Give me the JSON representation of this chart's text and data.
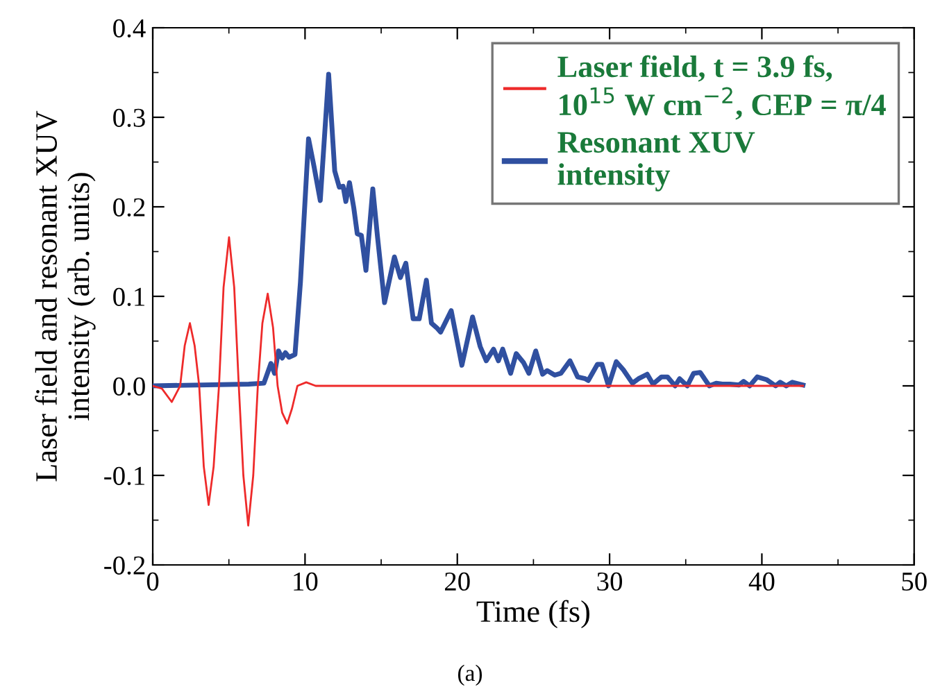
{
  "chart_data": {
    "type": "line",
    "xlabel": "Time (fs)",
    "ylabel": "Laser field and resonant XUV\nintensity (arb. units)",
    "xlim": [
      0,
      50
    ],
    "xticks": [
      0,
      10,
      20,
      30,
      40,
      50
    ],
    "ylim": [
      -0.2,
      0.4
    ],
    "yticks": [
      -0.2,
      -0.1,
      {
        "value": 0,
        "label": "0.0"
      },
      0.1,
      0.2,
      0.3,
      0.4
    ],
    "grid": false,
    "legend": "top right",
    "marker": "none",
    "line_style": "solid",
    "annotations": [
      "(a)"
    ],
    "series": [
      {
        "name": "Laser field, t = 3.9 fs,\n10$^{15}$ W cm$^{−2}$, CEP = π/4",
        "color": "#ee2a2a",
        "x": [
          0,
          0.6,
          1.25,
          1.8,
          2.1,
          2.44,
          2.75,
          3.05,
          3.35,
          3.67,
          4.0,
          4.35,
          4.65,
          5.01,
          5.35,
          5.65,
          5.95,
          6.27,
          6.6,
          6.9,
          7.2,
          7.55,
          7.9,
          8.2,
          8.5,
          8.83,
          9.15,
          9.5,
          10.08,
          10.7,
          42.7
        ],
        "values": [
          0,
          -0.003,
          -0.018,
          0,
          0.045,
          0.07,
          0.045,
          0,
          -0.09,
          -0.133,
          -0.09,
          0,
          0.11,
          0.166,
          0.11,
          0,
          -0.1,
          -0.156,
          -0.1,
          0,
          0.07,
          0.103,
          0.065,
          0,
          -0.03,
          -0.042,
          -0.025,
          0,
          0.004,
          0,
          0
        ]
      },
      {
        "name": "Resonant XUV\nintensity",
        "color": "#3050a0",
        "x": [
          0,
          6.3,
          7.3,
          7.76,
          8.0,
          8.26,
          8.5,
          8.71,
          8.95,
          9.34,
          9.7,
          10.23,
          10.59,
          11.0,
          11.55,
          11.95,
          12.25,
          12.5,
          12.68,
          12.92,
          13.2,
          13.43,
          13.7,
          14.0,
          14.45,
          14.75,
          15.22,
          15.87,
          16.26,
          16.62,
          17.1,
          17.5,
          17.97,
          18.3,
          18.7,
          18.9,
          19.6,
          20.3,
          21.0,
          21.5,
          21.9,
          22.38,
          22.7,
          22.98,
          23.5,
          23.87,
          24.35,
          24.7,
          25.15,
          25.6,
          25.9,
          26.4,
          26.8,
          27.4,
          27.9,
          28.4,
          28.6,
          29.2,
          29.5,
          29.93,
          30.44,
          30.9,
          31.5,
          31.9,
          32.47,
          32.85,
          33.4,
          33.8,
          34.3,
          34.6,
          35.1,
          35.52,
          35.95,
          36.55,
          37.0,
          37.4,
          37.9,
          38.5,
          38.8,
          39.2,
          39.7,
          40.3,
          40.9,
          41.2,
          41.6,
          42.0,
          42.7
        ],
        "values": [
          0,
          0.002,
          0.003,
          0.025,
          0.014,
          0.039,
          0.031,
          0.037,
          0.032,
          0.035,
          0.116,
          0.276,
          0.245,
          0.207,
          0.348,
          0.24,
          0.222,
          0.223,
          0.206,
          0.227,
          0.199,
          0.17,
          0.168,
          0.129,
          0.22,
          0.168,
          0.093,
          0.144,
          0.121,
          0.137,
          0.075,
          0.075,
          0.118,
          0.07,
          0.064,
          0.06,
          0.084,
          0.023,
          0.077,
          0.044,
          0.028,
          0.041,
          0.028,
          0.041,
          0.014,
          0.036,
          0.026,
          0.014,
          0.039,
          0.013,
          0.017,
          0.012,
          0.014,
          0.028,
          0.01,
          0.008,
          0.006,
          0.024,
          0.024,
          0.0,
          0.027,
          0.018,
          0.003,
          0.008,
          0.013,
          0.002,
          0.01,
          0.01,
          0.0,
          0.008,
          0.0,
          0.014,
          0.015,
          0.0,
          0.003,
          0.002,
          0.002,
          0.001,
          0.005,
          0.0,
          0.01,
          0.007,
          0.0,
          0.004,
          0.0,
          0.004,
          0.001
        ]
      }
    ]
  }
}
